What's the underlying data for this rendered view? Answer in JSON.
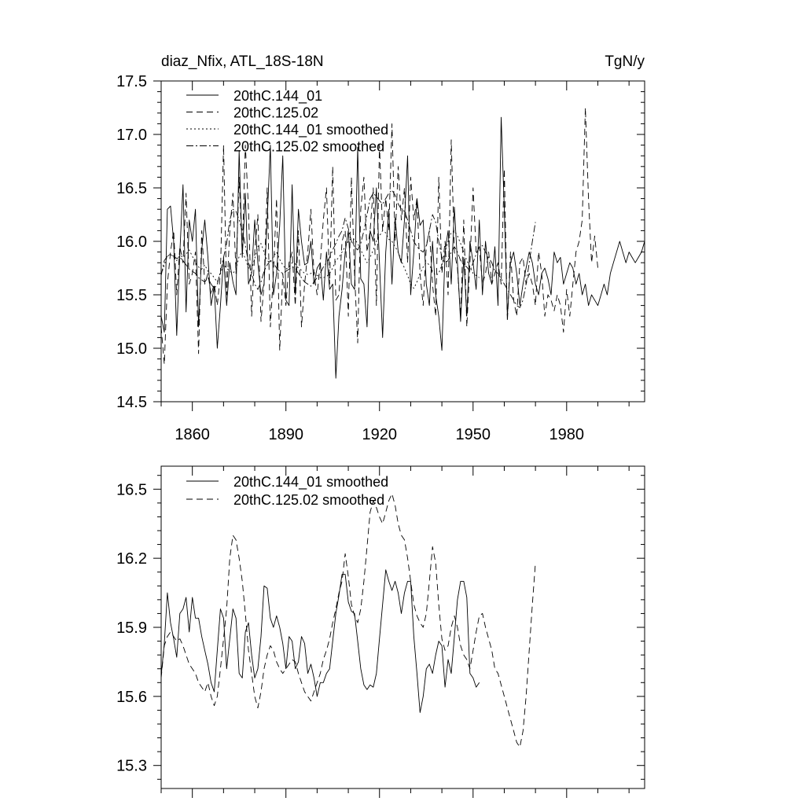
{
  "chart_data": [
    {
      "type": "line",
      "title": "diaz_Nfix, ATL_18S-18N",
      "units": "TgN/y",
      "xlim": [
        1850,
        2005
      ],
      "ylim": [
        14.5,
        17.5
      ],
      "x_ticks": [
        1860,
        1890,
        1920,
        1950,
        1980
      ],
      "y_ticks": [
        "14.5",
        "15.0",
        "15.5",
        "16.0",
        "16.5",
        "17.0",
        "17.5"
      ],
      "legend_position": "top-left",
      "grid": false,
      "series": [
        {
          "name": "20thC.144_01",
          "style": "solid",
          "x_start": 1850,
          "values": [
            15.3,
            15.15,
            16.3,
            16.33,
            16.0,
            15.12,
            15.9,
            16.53,
            15.34,
            16.2,
            16.0,
            16.3,
            15.2,
            15.92,
            16.2,
            15.85,
            15.4,
            15.58,
            15.0,
            15.4,
            15.85,
            15.4,
            15.8,
            15.62,
            15.5,
            16.85,
            15.85,
            16.45,
            15.6,
            15.7,
            16.2,
            15.8,
            15.5,
            15.6,
            16.2,
            16.9,
            15.5,
            15.7,
            16.15,
            16.8,
            15.45,
            15.4,
            16.53,
            15.5,
            16.3,
            16.0,
            15.78,
            15.8,
            16.0,
            15.6,
            15.75,
            15.8,
            15.45,
            15.9,
            15.55,
            15.6,
            14.72,
            15.3,
            15.55,
            15.9,
            16.1,
            15.6,
            15.55,
            16.88,
            15.65,
            15.6,
            15.2,
            16.1,
            16.0,
            16.5,
            15.8,
            15.1,
            15.9,
            16.3,
            15.6,
            16.22,
            15.9,
            15.8,
            16.2,
            16.8,
            15.5,
            15.9,
            16.4,
            16.15,
            16.2,
            15.6,
            15.4,
            16.0,
            15.5,
            15.3,
            14.98,
            15.9,
            16.1,
            15.6,
            16.32,
            15.8,
            15.25,
            15.85,
            15.3,
            16.0,
            15.8,
            15.55,
            16.2,
            15.5,
            16.0,
            15.7,
            15.6,
            15.95,
            15.4,
            17.16,
            16.3,
            15.3,
            15.8,
            15.9,
            15.7,
            15.4,
            15.6,
            15.75,
            15.9,
            15.8,
            15.6,
            15.5,
            15.7,
            15.75,
            15.65,
            15.5,
            15.9,
            15.8,
            15.85,
            15.6,
            15.7,
            15.8,
            15.75,
            15.6,
            15.7,
            15.5,
            15.6,
            15.4,
            15.5,
            15.45,
            15.4,
            15.5,
            15.6,
            15.5,
            15.7,
            15.8,
            15.9,
            16.0,
            15.9,
            15.8,
            15.9,
            15.85,
            15.8,
            15.85,
            15.9,
            16.0
          ]
        },
        {
          "name": "20thC.125.02",
          "style": "dashed",
          "x_start": 1850,
          "values": [
            15.2,
            14.85,
            15.6,
            15.9,
            16.1,
            15.5,
            15.95,
            15.8,
            16.45,
            15.6,
            15.7,
            15.9,
            14.95,
            16.1,
            15.6,
            15.7,
            15.5,
            15.6,
            15.4,
            15.7,
            16.9,
            15.5,
            16.1,
            16.45,
            15.7,
            16.6,
            15.9,
            16.9,
            16.3,
            15.3,
            15.9,
            16.25,
            15.25,
            15.6,
            16.5,
            15.2,
            15.7,
            16.4,
            14.98,
            15.7,
            15.4,
            15.8,
            15.9,
            15.4,
            16.1,
            15.2,
            15.6,
            15.9,
            16.3,
            15.7,
            15.5,
            15.8,
            16.2,
            16.5,
            15.6,
            16.7,
            15.45,
            15.5,
            16.0,
            16.1,
            15.3,
            16.6,
            15.7,
            15.05,
            16.3,
            16.6,
            15.9,
            16.1,
            16.5,
            15.4,
            16.9,
            16.1,
            16.4,
            16.1,
            17.1,
            16.0,
            16.7,
            16.2,
            16.5,
            15.8,
            16.6,
            16.2,
            16.4,
            15.7,
            15.4,
            15.95,
            16.1,
            15.6,
            15.3,
            16.6,
            15.7,
            16.0,
            15.5,
            16.95,
            15.9,
            15.75,
            15.3,
            16.2,
            15.2,
            15.8,
            16.5,
            15.9,
            15.95,
            15.6,
            15.7,
            15.9,
            15.6,
            15.7,
            15.8,
            15.6,
            16.68,
            15.25,
            15.9,
            15.45,
            15.3,
            15.8,
            15.85,
            15.6,
            15.7,
            15.6,
            15.4,
            15.9,
            15.7,
            15.3,
            15.5,
            15.45,
            15.35,
            15.5,
            15.4,
            15.15,
            15.55,
            15.3,
            15.6,
            15.9,
            16.0,
            16.2,
            17.25,
            16.4,
            15.8,
            16.05,
            15.75
          ]
        },
        {
          "name": "20thC.144_01 smoothed",
          "style": "dotted",
          "x_start": 1850,
          "values": [
            15.69,
            15.78,
            15.86,
            15.88,
            15.85,
            15.82,
            15.87,
            15.85,
            15.88,
            15.92,
            15.86,
            15.8,
            15.76,
            15.74,
            15.78,
            15.72,
            15.7,
            15.66,
            15.62,
            15.7,
            15.78,
            15.75,
            15.72,
            15.7,
            15.74,
            15.86,
            15.9,
            15.84,
            15.75,
            15.74,
            15.84,
            15.95,
            15.98,
            15.9,
            15.82,
            15.8,
            15.86,
            15.9,
            15.83,
            15.78,
            15.74,
            15.76,
            15.8,
            15.79,
            15.75,
            15.73,
            15.7,
            15.69,
            15.7,
            15.71,
            15.68,
            15.66,
            15.66,
            15.67,
            15.7,
            15.75,
            15.82,
            15.85,
            15.9,
            15.95,
            16.0,
            16.03,
            16.02,
            15.98,
            15.92,
            15.86,
            15.8,
            15.85,
            15.92,
            16.0,
            16.05,
            16.1,
            16.08,
            16.02,
            16.0,
            15.95,
            15.9,
            15.82,
            15.75,
            15.68,
            15.6,
            15.56,
            15.62,
            15.7,
            15.76,
            15.8,
            15.78,
            15.72,
            15.68,
            15.7,
            15.78,
            15.9,
            16.0,
            16.08,
            16.1,
            16.05,
            15.98,
            15.9,
            15.82,
            15.76,
            15.7,
            15.68,
            15.66
          ]
        },
        {
          "name": "20thC.125.02 smoothed",
          "style": "dashdot",
          "x_start": 1850,
          "values": [
            15.68,
            15.82,
            15.86,
            15.88,
            15.86,
            15.84,
            15.85,
            15.82,
            15.78,
            15.74,
            15.72,
            15.7,
            15.66,
            15.64,
            15.62,
            15.66,
            15.6,
            15.56,
            15.6,
            15.72,
            15.85,
            15.98,
            16.2,
            16.3,
            16.28,
            16.2,
            16.1,
            15.96,
            15.8,
            15.7,
            15.6,
            15.55,
            15.62,
            15.72,
            15.78,
            15.82,
            15.8,
            15.75,
            15.72,
            15.7,
            15.72,
            15.74,
            15.76,
            15.75,
            15.7,
            15.66,
            15.62,
            15.6,
            15.58,
            15.62,
            15.66,
            15.7,
            15.76,
            15.8,
            15.85,
            15.92,
            15.98,
            16.05,
            16.1,
            16.22,
            16.12,
            16.0,
            15.95,
            15.92,
            15.98,
            16.1,
            16.25,
            16.4,
            16.45,
            16.42,
            16.38,
            16.35,
            16.4,
            16.45,
            16.48,
            16.43,
            16.35,
            16.3,
            16.28,
            16.2,
            16.1,
            16.0,
            15.95,
            15.92,
            15.9,
            15.96,
            16.1,
            16.25,
            16.18,
            16.0,
            15.85,
            15.8,
            15.82,
            15.9,
            15.95,
            15.9,
            15.82,
            15.78,
            15.76,
            15.72,
            15.8,
            15.88,
            15.95,
            15.96,
            15.9,
            15.85,
            15.8,
            15.72,
            15.7,
            15.65,
            15.6,
            15.55,
            15.5,
            15.45,
            15.4,
            15.38,
            15.45,
            15.6,
            15.8,
            16.0,
            16.18
          ]
        }
      ]
    },
    {
      "type": "line",
      "xlim": [
        1850,
        2005
      ],
      "ylim": [
        15.2,
        16.6
      ],
      "y_ticks": [
        "15.3",
        "15.6",
        "15.9",
        "16.2",
        "16.5"
      ],
      "legend_position": "top-left",
      "grid": false,
      "series": [
        {
          "name": "20thC.144_01 smoothed",
          "style": "solid",
          "x_start": 1850,
          "values": [
            15.69,
            15.83,
            16.05,
            15.92,
            15.85,
            15.77,
            15.96,
            15.98,
            16.03,
            15.88,
            16.03,
            15.94,
            15.94,
            15.86,
            15.8,
            15.74,
            15.66,
            15.62,
            15.8,
            15.98,
            15.94,
            15.72,
            15.85,
            15.98,
            15.94,
            15.7,
            15.68,
            15.88,
            15.92,
            15.78,
            15.68,
            15.72,
            15.86,
            16.08,
            16.07,
            15.94,
            15.9,
            15.95,
            15.9,
            15.83,
            15.72,
            15.86,
            15.84,
            15.72,
            15.75,
            15.86,
            15.83,
            15.7,
            15.74,
            15.68,
            15.6,
            15.66,
            15.66,
            15.7,
            15.72,
            15.84,
            15.96,
            16.04,
            16.13,
            16.13,
            16.01,
            15.97,
            15.96,
            15.84,
            15.72,
            15.65,
            15.63,
            15.65,
            15.64,
            15.7,
            15.85,
            16.0,
            16.15,
            16.1,
            16.06,
            16.1,
            16.05,
            15.96,
            16.05,
            16.1,
            16.1,
            15.86,
            15.7,
            15.53,
            15.6,
            15.72,
            15.74,
            15.7,
            15.78,
            15.84,
            15.82,
            15.64,
            15.76,
            15.7,
            15.86,
            16.02,
            16.1,
            16.1,
            16.03,
            15.7,
            15.68,
            15.64,
            15.66
          ]
        },
        {
          "name": "20thC.125.02 smoothed",
          "style": "dashed",
          "x_start": 1850,
          "values": [
            15.68,
            15.82,
            15.86,
            15.88,
            15.86,
            15.84,
            15.85,
            15.82,
            15.78,
            15.74,
            15.72,
            15.7,
            15.66,
            15.64,
            15.62,
            15.66,
            15.6,
            15.56,
            15.6,
            15.72,
            15.85,
            15.98,
            16.2,
            16.3,
            16.28,
            16.2,
            16.1,
            15.96,
            15.8,
            15.7,
            15.6,
            15.55,
            15.62,
            15.72,
            15.78,
            15.82,
            15.8,
            15.75,
            15.72,
            15.7,
            15.72,
            15.74,
            15.76,
            15.75,
            15.7,
            15.66,
            15.62,
            15.6,
            15.58,
            15.62,
            15.66,
            15.7,
            15.76,
            15.8,
            15.85,
            15.92,
            15.98,
            16.05,
            16.1,
            16.22,
            16.12,
            16.0,
            15.95,
            15.92,
            15.98,
            16.1,
            16.25,
            16.4,
            16.45,
            16.42,
            16.38,
            16.35,
            16.4,
            16.45,
            16.48,
            16.43,
            16.35,
            16.3,
            16.28,
            16.2,
            16.1,
            16.0,
            15.95,
            15.92,
            15.9,
            15.96,
            16.1,
            16.25,
            16.18,
            16.0,
            15.85,
            15.8,
            15.82,
            15.9,
            15.95,
            15.9,
            15.82,
            15.78,
            15.76,
            15.72,
            15.8,
            15.88,
            15.95,
            15.96,
            15.9,
            15.85,
            15.8,
            15.72,
            15.7,
            15.65,
            15.6,
            15.55,
            15.5,
            15.45,
            15.4,
            15.38,
            15.45,
            15.6,
            15.8,
            16.0,
            16.18
          ]
        }
      ]
    }
  ]
}
